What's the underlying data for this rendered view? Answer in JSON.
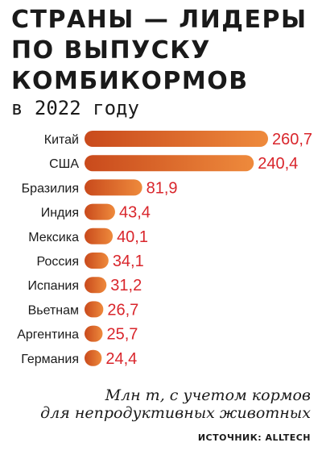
{
  "header": {
    "title_lines": [
      "СТРАНЫ — ЛИДЕРЫ",
      "ПО ВЫПУСКУ",
      "КОМБИКОРМОВ"
    ],
    "subtitle": "в 2022 году"
  },
  "footer": {
    "note_lines": [
      "Млн т, с учетом кормов",
      "для непродуктивных животных"
    ],
    "source": "ИСТОЧНИК: ALLTECH"
  },
  "colors": {
    "bar_start": "#c94a1c",
    "bar_end": "#ee8a3c",
    "value_text": "#d9262c",
    "label_text": "#1a1a1a"
  },
  "chart_data": {
    "type": "bar",
    "orientation": "horizontal",
    "title": "СТРАНЫ — ЛИДЕРЫ ПО ВЫПУСКУ КОМБИКОРМОВ",
    "subtitle": "в 2022 году",
    "categories": [
      "Китай",
      "США",
      "Бразилия",
      "Индия",
      "Мексика",
      "Россия",
      "Испания",
      "Вьетнам",
      "Аргентина",
      "Германия"
    ],
    "values": [
      260.7,
      240.4,
      81.9,
      43.4,
      40.1,
      34.1,
      31.2,
      26.7,
      25.7,
      24.4
    ],
    "value_labels": [
      "260,7",
      "240,4",
      "81,9",
      "43,4",
      "40,1",
      "34,1",
      "31,2",
      "26,7",
      "25,7",
      "24,4"
    ],
    "unit": "Млн т, с учетом кормов для непродуктивных животных",
    "xlim": [
      0,
      260.7
    ],
    "grid": false,
    "legend": "none"
  }
}
